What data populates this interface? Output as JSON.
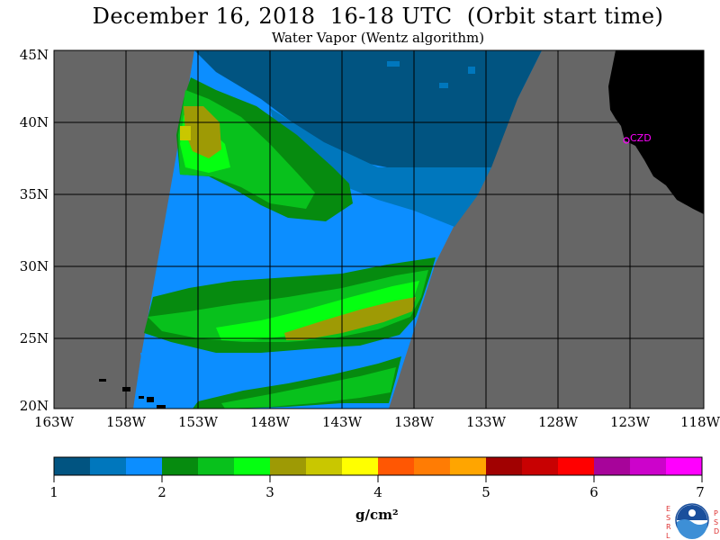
{
  "title": "December 16, 2018  16-18 UTC  (Orbit start time)",
  "subtitle": "Water Vapor (Wentz algorithm)",
  "lat_labels": [
    "45N",
    "40N",
    "35N",
    "30N",
    "25N",
    "20N"
  ],
  "lon_labels": [
    "163W",
    "158W",
    "153W",
    "148W",
    "143W",
    "138W",
    "133W",
    "128W",
    "123W",
    "118W"
  ],
  "station_label": "CZD",
  "colorbar": {
    "unit": "g/cm²",
    "ticks": [
      "1",
      "2",
      "3",
      "4",
      "5",
      "6",
      "7"
    ],
    "colors": [
      "#015481",
      "#0077bd",
      "#0c8eff",
      "#068b0f",
      "#08c11c",
      "#05ff11",
      "#9e9a05",
      "#c9c700",
      "#ffff00",
      "#ff5703",
      "#ff7c04",
      "#ffa500",
      "#a10101",
      "#c80102",
      "#ff0000",
      "#a7049a",
      "#cc03cb",
      "#ff00fe"
    ]
  },
  "logo": {
    "letters_left": [
      "E",
      "S",
      "R",
      "L"
    ],
    "letters_right": [
      "P",
      "S",
      "D"
    ],
    "name": "NOAA"
  },
  "colors": {
    "land": "#000000",
    "no_data": "#666666",
    "magenta": "#ff00ff"
  }
}
